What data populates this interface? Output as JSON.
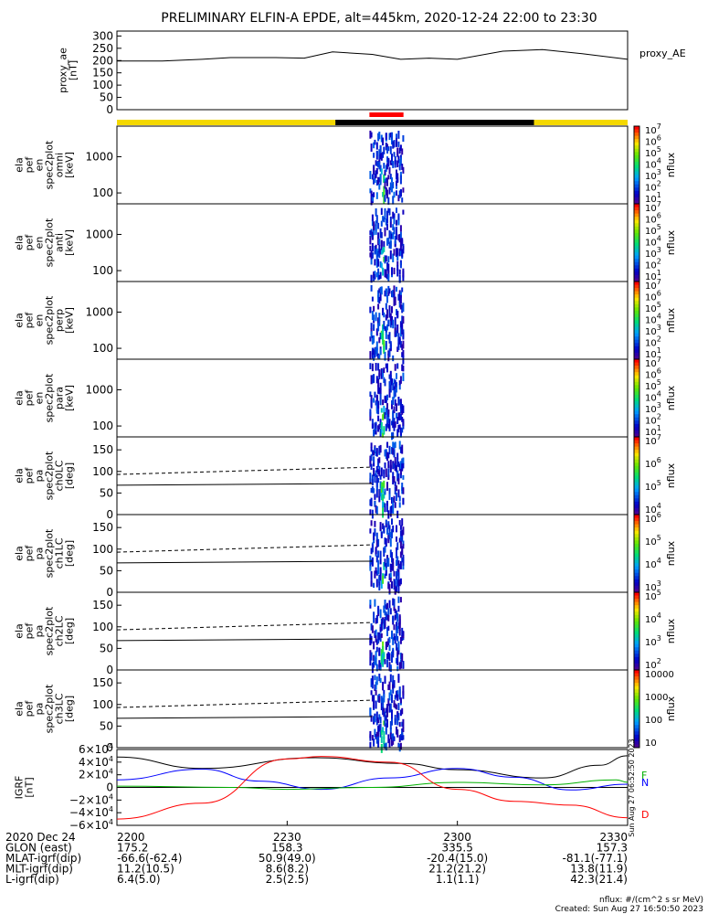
{
  "chart_data": {
    "title": "PRELIMINARY ELFIN-A EPDE, alt=445km, 2020-12-24 22:00 to 23:30",
    "type": "line",
    "x_range_min": [
      0,
      90
    ],
    "proxy": {
      "ylabel_lines": [
        "proxy_ae",
        "[nT]"
      ],
      "legend": "proxy_AE",
      "yticks": [
        "0",
        "50",
        "100",
        "150",
        "200",
        "250",
        "300"
      ],
      "ylim": [
        0,
        320
      ],
      "x_min": [
        0,
        8,
        15,
        20,
        28,
        33,
        38,
        45,
        50,
        55,
        60,
        68,
        75,
        82,
        90
      ],
      "values": [
        198,
        198,
        205,
        212,
        212,
        210,
        235,
        225,
        205,
        210,
        205,
        238,
        245,
        228,
        205
      ]
    },
    "state_bar": [
      {
        "from": 0,
        "to": 38.5,
        "color": "#f4d800"
      },
      {
        "from": 38.5,
        "to": 73.5,
        "color": "#000000"
      },
      {
        "from": 73.5,
        "to": 90,
        "color": "#f4d800"
      }
    ],
    "highlight_bar": {
      "from": 44.5,
      "to": 50.5,
      "color": "#ff0000"
    },
    "panels": [
      {
        "ylabel_lines": [
          "ela",
          "pef",
          "en",
          "spec2plot",
          "omni",
          "[keV]"
        ],
        "kind": "energy",
        "yticks": [
          "100",
          "1000"
        ],
        "ylim": [
          50,
          7000
        ],
        "bar_labels": [
          "10^7",
          "10^6",
          "10^5",
          "10^4",
          "10^3",
          "10^2",
          "10^1"
        ],
        "bar_unit": "nflux"
      },
      {
        "ylabel_lines": [
          "ela",
          "pef",
          "en",
          "spec2plot",
          "anti",
          "[keV]"
        ],
        "kind": "energy",
        "yticks": [
          "100",
          "1000"
        ],
        "ylim": [
          50,
          7000
        ],
        "bar_labels": [
          "10^7",
          "10^6",
          "10^5",
          "10^4",
          "10^3",
          "10^2",
          "10^1"
        ],
        "bar_unit": "nflux"
      },
      {
        "ylabel_lines": [
          "ela",
          "pef",
          "en",
          "spec2plot",
          "perp",
          "[keV]"
        ],
        "kind": "energy",
        "yticks": [
          "100",
          "1000"
        ],
        "ylim": [
          50,
          7000
        ],
        "bar_labels": [
          "10^7",
          "10^6",
          "10^5",
          "10^4",
          "10^3",
          "10^2",
          "10^1"
        ],
        "bar_unit": "nflux"
      },
      {
        "ylabel_lines": [
          "ela",
          "pef",
          "en",
          "spec2plot",
          "para",
          "[keV]"
        ],
        "kind": "energy",
        "yticks": [
          "100",
          "1000"
        ],
        "ylim": [
          50,
          7000
        ],
        "bar_labels": [
          "10^7",
          "10^6",
          "10^5",
          "10^4",
          "10^3",
          "10^2",
          "10^1"
        ],
        "bar_unit": "nflux"
      },
      {
        "ylabel_lines": [
          "ela",
          "pef",
          "pa",
          "spec2plot",
          "ch0LC",
          "[deg]"
        ],
        "kind": "pa",
        "yticks": [
          "0",
          "50",
          "100",
          "150"
        ],
        "ylim": [
          0,
          180
        ],
        "bar_labels": [
          "10^7",
          "10^6",
          "10^5",
          "10^4"
        ],
        "bar_unit": "nflux"
      },
      {
        "ylabel_lines": [
          "ela",
          "pef",
          "pa",
          "spec2plot",
          "ch1LC",
          "[deg]"
        ],
        "kind": "pa",
        "yticks": [
          "0",
          "50",
          "100",
          "150"
        ],
        "ylim": [
          0,
          180
        ],
        "bar_labels": [
          "10^6",
          "10^5",
          "10^4",
          "10^3"
        ],
        "bar_unit": "nflux"
      },
      {
        "ylabel_lines": [
          "ela",
          "pef",
          "pa",
          "spec2plot",
          "ch2LC",
          "[deg]"
        ],
        "kind": "pa",
        "yticks": [
          "0",
          "50",
          "100",
          "150"
        ],
        "ylim": [
          0,
          180
        ],
        "bar_labels": [
          "10^5",
          "10^4",
          "10^3",
          "10^2"
        ],
        "bar_unit": "nflux"
      },
      {
        "ylabel_lines": [
          "ela",
          "pef",
          "pa",
          "spec2plot",
          "ch3LC",
          "[deg]"
        ],
        "kind": "pa",
        "yticks": [
          "0",
          "50",
          "100",
          "150"
        ],
        "ylim": [
          0,
          180
        ],
        "bar_labels": [
          "10000",
          "1000",
          "100",
          "10"
        ],
        "bar_unit": "nflux"
      }
    ],
    "pa_lines": {
      "solid": {
        "x_min": [
          0,
          45
        ],
        "values": [
          68,
          72
        ]
      },
      "dashed": {
        "x_min": [
          0,
          45
        ],
        "values": [
          93,
          110
        ]
      }
    },
    "igrf": {
      "ylabel_lines": [
        "IGRF",
        "[nT]"
      ],
      "yticks": [
        "6×10^4",
        "4×10^4",
        "2×10^4",
        "0",
        "−2×10^4",
        "−4×10^4",
        "−6×10^4"
      ],
      "ylim": [
        -60000,
        60000
      ],
      "legend": [
        {
          "name": "F",
          "color": "#00b000"
        },
        {
          "name": "N",
          "color": "#0000ff"
        },
        {
          "name": "D",
          "color": "#ff0000"
        }
      ],
      "series": [
        {
          "color": "#000000",
          "x_min": [
            0,
            15,
            35,
            50,
            60,
            75,
            85,
            90
          ],
          "values": [
            48000,
            30000,
            47000,
            38000,
            28000,
            15000,
            35000,
            50000
          ]
        },
        {
          "color": "#0000ff",
          "x_min": [
            0,
            15,
            25,
            36,
            48,
            60,
            70,
            80,
            90
          ],
          "values": [
            12000,
            29000,
            10000,
            -3000,
            15000,
            30000,
            16000,
            -4000,
            5000
          ]
        },
        {
          "color": "#00b000",
          "x_min": [
            0,
            20,
            30,
            45,
            60,
            75,
            88,
            90
          ],
          "values": [
            2000,
            0,
            -3000,
            0,
            8000,
            4000,
            12000,
            8000
          ]
        },
        {
          "color": "#ff0000",
          "x_min": [
            0,
            15,
            30,
            36,
            48,
            60,
            70,
            80,
            90
          ],
          "values": [
            -50000,
            -25000,
            45000,
            49000,
            40000,
            -3000,
            -22000,
            -28000,
            -48000
          ]
        }
      ]
    },
    "footer": {
      "rows": [
        {
          "label": "2020 Dec 24",
          "values": [
            "2200",
            "2230",
            "2300",
            "2330"
          ]
        },
        {
          "label": "GLON (east)",
          "values": [
            "175.2",
            "158.3",
            "335.5",
            "157.3"
          ]
        },
        {
          "label": "MLAT-igrf(dip)",
          "values": [
            "-66.6(-62.4)",
            "50.9(49.0)",
            "-20.4(15.0)",
            "-81.1(-77.1)"
          ]
        },
        {
          "label": "MLT-igrf(dip)",
          "values": [
            "11.2(10.5)",
            "8.6(8.2)",
            "21.2(21.2)",
            "13.8(11.9)"
          ]
        },
        {
          "label": "L-igrf(dip)",
          "values": [
            "6.4(5.0)",
            "2.5(2.5)",
            "1.1(1.1)",
            "42.3(21.4)"
          ]
        }
      ],
      "note1": "nflux: #/(cm^2 s sr MeV)",
      "note2": "Created: Sun Aug 27 16:50:50 2023",
      "side_note": "Sun Aug 27 06:52:50 2023"
    }
  }
}
